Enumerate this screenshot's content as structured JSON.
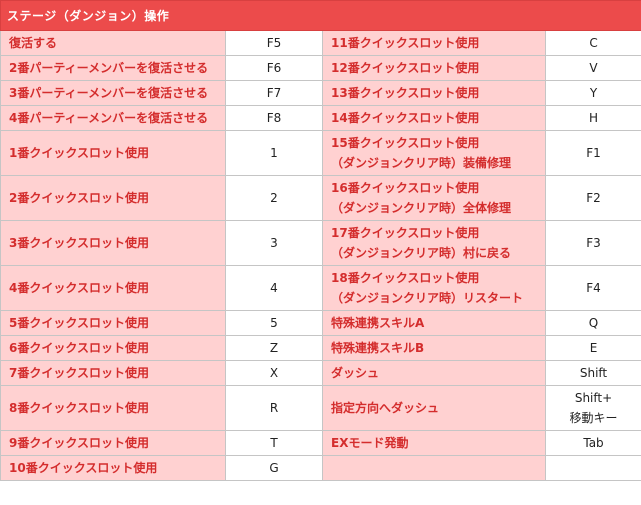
{
  "title": "ステージ（ダンジョン）操作",
  "rows": [
    {
      "a1": [
        "復活する"
      ],
      "k1": [
        "F5"
      ],
      "a2": [
        "11番クイックスロット使用"
      ],
      "k2": [
        "C"
      ]
    },
    {
      "a1": [
        "2番パーティーメンバーを復活させる"
      ],
      "k1": [
        "F6"
      ],
      "a2": [
        "12番クイックスロット使用"
      ],
      "k2": [
        "V"
      ]
    },
    {
      "a1": [
        "3番パーティーメンバーを復活させる"
      ],
      "k1": [
        "F7"
      ],
      "a2": [
        "13番クイックスロット使用"
      ],
      "k2": [
        "Y"
      ]
    },
    {
      "a1": [
        "4番パーティーメンバーを復活させる"
      ],
      "k1": [
        "F8"
      ],
      "a2": [
        "14番クイックスロット使用"
      ],
      "k2": [
        "H"
      ]
    },
    {
      "a1": [
        "1番クイックスロット使用"
      ],
      "k1": [
        "1"
      ],
      "a2": [
        "15番クイックスロット使用",
        "（ダンジョンクリア時）装備修理"
      ],
      "k2": [
        "F1"
      ]
    },
    {
      "a1": [
        "2番クイックスロット使用"
      ],
      "k1": [
        "2"
      ],
      "a2": [
        "16番クイックスロット使用",
        "（ダンジョンクリア時）全体修理"
      ],
      "k2": [
        "F2"
      ]
    },
    {
      "a1": [
        "3番クイックスロット使用"
      ],
      "k1": [
        "3"
      ],
      "a2": [
        "17番クイックスロット使用",
        "（ダンジョンクリア時）村に戻る"
      ],
      "k2": [
        "F3"
      ]
    },
    {
      "a1": [
        "4番クイックスロット使用"
      ],
      "k1": [
        "4"
      ],
      "a2": [
        "18番クイックスロット使用",
        "（ダンジョンクリア時）リスタート"
      ],
      "k2": [
        "F4"
      ]
    },
    {
      "a1": [
        "5番クイックスロット使用"
      ],
      "k1": [
        "5"
      ],
      "a2": [
        "特殊連携スキルA"
      ],
      "k2": [
        "Q"
      ]
    },
    {
      "a1": [
        "6番クイックスロット使用"
      ],
      "k1": [
        "Z"
      ],
      "a2": [
        "特殊連携スキルB"
      ],
      "k2": [
        "E"
      ]
    },
    {
      "a1": [
        "7番クイックスロット使用"
      ],
      "k1": [
        "X"
      ],
      "a2": [
        "ダッシュ"
      ],
      "k2": [
        "Shift"
      ]
    },
    {
      "a1": [
        "8番クイックスロット使用"
      ],
      "k1": [
        "R"
      ],
      "a2": [
        "指定方向へダッシュ"
      ],
      "k2": [
        "Shift+",
        "移動キー"
      ]
    },
    {
      "a1": [
        "9番クイックスロット使用"
      ],
      "k1": [
        "T"
      ],
      "a2": [
        "EXモード発動"
      ],
      "k2": [
        "Tab"
      ]
    },
    {
      "a1": [
        "10番クイックスロット使用"
      ],
      "k1": [
        "G"
      ],
      "a2": [],
      "k2": []
    }
  ]
}
